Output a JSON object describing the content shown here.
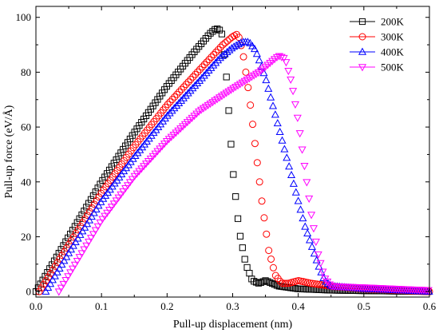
{
  "chart_data": {
    "type": "scatter",
    "xlabel": "Pull-up displacement (nm)",
    "ylabel": "Pull-up force (eV/Å)",
    "xlim": [
      0,
      0.6
    ],
    "ylim": [
      -2,
      104
    ],
    "xticks": [
      "0.0",
      "0.1",
      "0.2",
      "0.3",
      "0.4",
      "0.5",
      "0.6"
    ],
    "yticks": [
      "0",
      "20",
      "40",
      "60",
      "80",
      "100"
    ],
    "grid": false,
    "legend_position": "top-right",
    "series": [
      {
        "name": "200K",
        "color": "#000000",
        "marker": "square",
        "x": [
          0,
          0.05,
          0.1,
          0.15,
          0.2,
          0.24,
          0.265,
          0.275,
          0.283,
          0.29,
          0.3,
          0.31,
          0.32,
          0.33,
          0.34,
          0.35,
          0.36,
          0.37,
          0.4,
          0.45,
          0.5,
          0.6
        ],
        "y": [
          0,
          20,
          40,
          58,
          75,
          87,
          94,
          96,
          95,
          80,
          45,
          22,
          10,
          4,
          3,
          4,
          3,
          2,
          1,
          0.5,
          0.3,
          0
        ]
      },
      {
        "name": "300K",
        "color": "#ff0000",
        "marker": "circle",
        "x": [
          0.005,
          0.05,
          0.1,
          0.15,
          0.2,
          0.25,
          0.285,
          0.3,
          0.308,
          0.315,
          0.325,
          0.335,
          0.345,
          0.355,
          0.365,
          0.375,
          0.385,
          0.4,
          0.42,
          0.45,
          0.5,
          0.6
        ],
        "y": [
          0,
          17,
          36,
          53,
          68,
          81,
          90,
          93,
          94,
          88,
          72,
          52,
          32,
          15,
          6,
          3,
          3,
          4,
          3,
          2,
          1,
          0
        ]
      },
      {
        "name": "400K",
        "color": "#0000ff",
        "marker": "triangle-up",
        "x": [
          0.015,
          0.05,
          0.1,
          0.15,
          0.2,
          0.25,
          0.28,
          0.3,
          0.315,
          0.325,
          0.335,
          0.35,
          0.37,
          0.39,
          0.41,
          0.43,
          0.44,
          0.45,
          0.5,
          0.55,
          0.6
        ],
        "y": [
          0,
          14,
          33,
          49,
          64,
          77,
          85,
          89,
          91,
          91,
          88,
          78,
          60,
          42,
          24,
          10,
          4,
          2,
          1,
          0.5,
          0
        ]
      },
      {
        "name": "500K",
        "color": "#ff00ff",
        "marker": "triangle-down",
        "x": [
          0.035,
          0.05,
          0.08,
          0.1,
          0.15,
          0.2,
          0.25,
          0.3,
          0.34,
          0.36,
          0.37,
          0.38,
          0.39,
          0.4,
          0.41,
          0.42,
          0.43,
          0.44,
          0.45,
          0.5,
          0.55,
          0.6
        ],
        "y": [
          0,
          6,
          18,
          26,
          42,
          55,
          66,
          74,
          80,
          84,
          86,
          85,
          76,
          62,
          45,
          28,
          14,
          5,
          2,
          1.5,
          1,
          0.5
        ]
      }
    ]
  }
}
